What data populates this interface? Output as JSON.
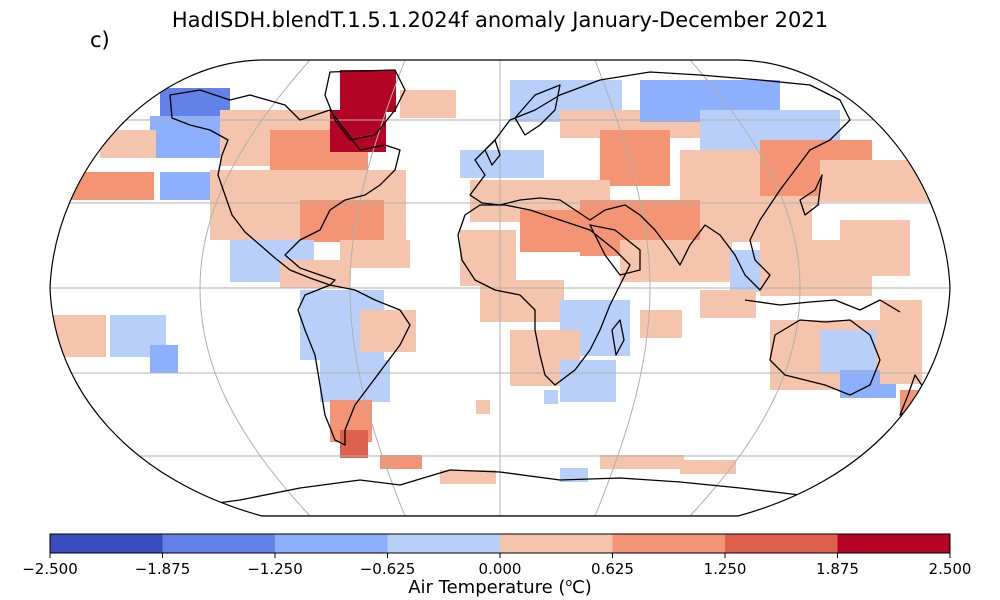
{
  "title": "HadISDH.blendT.1.5.1.2024f anomaly January-December 2021",
  "panel_label": "c)",
  "colorbar": {
    "label_prefix": "Air Temperature (",
    "label_sup": "o",
    "label_suffix": "C)",
    "ticks": [
      "−2.500",
      "−1.875",
      "−1.250",
      "−0.625",
      "0.000",
      "0.625",
      "1.250",
      "1.875",
      "2.500"
    ],
    "colors": [
      "#3b4cc0",
      "#6282ea",
      "#8db0fe",
      "#b8d0f9",
      "#f5c4ac",
      "#f39475",
      "#de604d",
      "#b40426"
    ]
  },
  "map": {
    "projection": "Robinson",
    "colors": {
      "land_outline": "#000000",
      "graticule": "#b0b0b0",
      "weak_cool": "#b8d0f9",
      "cool": "#8db0fe",
      "cold": "#6282ea",
      "very_cold": "#3b4cc0",
      "weak_warm": "#f5c4ac",
      "warm": "#f39475",
      "hot": "#de604d",
      "very_hot": "#b40426"
    }
  }
}
